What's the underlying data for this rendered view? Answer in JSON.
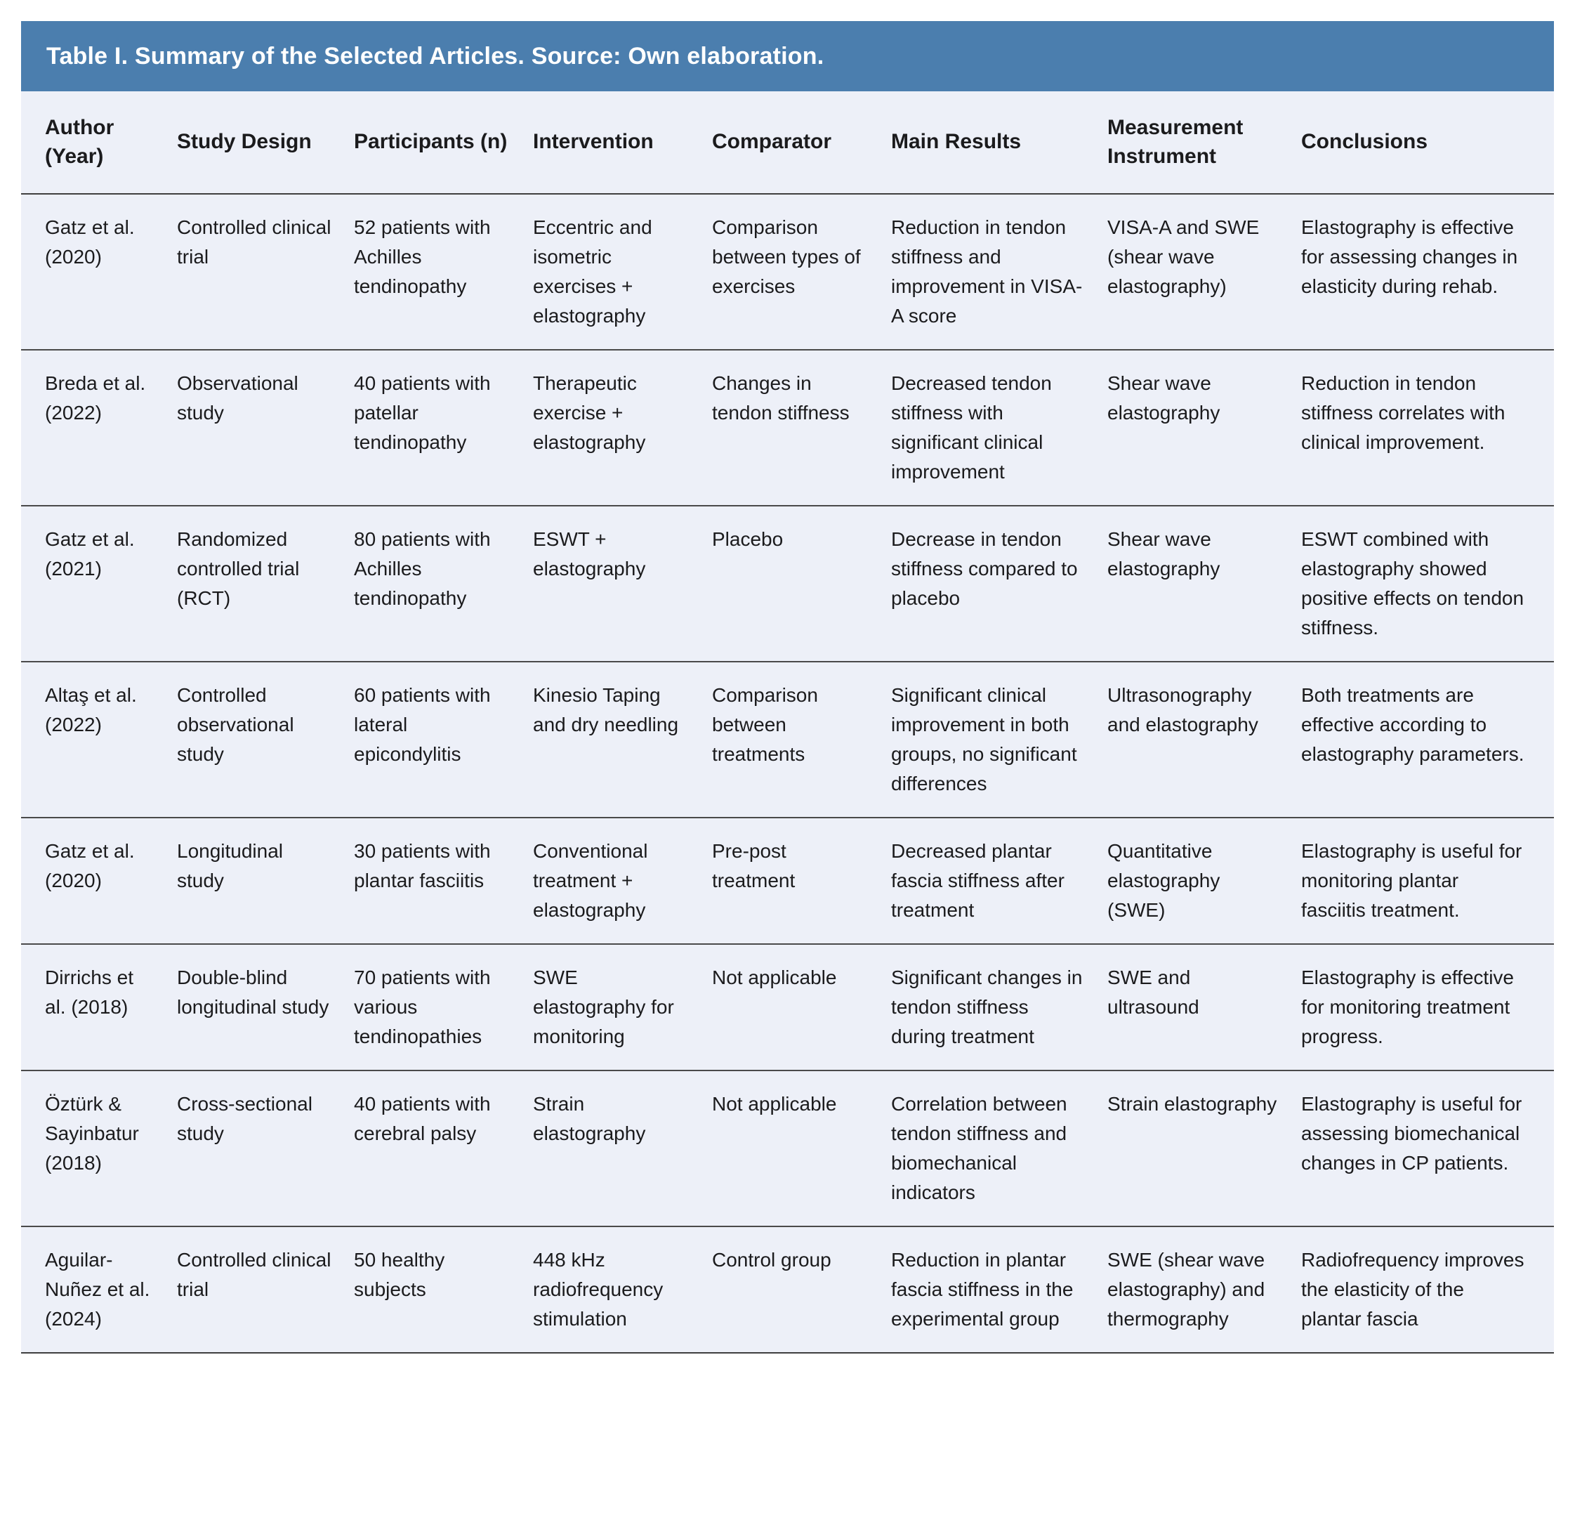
{
  "title": "Table I. Summary of the Selected Articles. Source: Own elaboration.",
  "colors": {
    "header_bar": "#4b7eae",
    "table_bg": "#edf0f8",
    "text": "#1b1b1d",
    "divider": "#3f3f3f",
    "title_text": "#ffffff"
  },
  "table": {
    "columns": [
      "Author (Year)",
      "Study Design",
      "Participants (n)",
      "Intervention",
      "Comparator",
      "Main Results",
      "Measurement Instrument",
      "Conclusions"
    ],
    "rows": [
      [
        "Gatz et al. (2020)",
        "Controlled clinical trial",
        "52 patients with Achilles tendinopathy",
        "Eccentric and isometric exercises + elastography",
        "Comparison between types of exercises",
        "Reduction in tendon stiffness and improvement in VISA-A score",
        "VISA-A and SWE (shear wave elastography)",
        "Elastography is effective for assessing changes in elasticity during rehab."
      ],
      [
        "Breda et al. (2022)",
        "Observational study",
        "40 patients with patellar tendinopathy",
        "Therapeutic exercise + elastography",
        "Changes in tendon stiffness",
        "Decreased tendon stiffness with significant clinical improvement",
        "Shear wave elastography",
        "Reduction in tendon stiffness correlates with clinical improvement."
      ],
      [
        "Gatz et al. (2021)",
        "Randomized controlled trial (RCT)",
        "80 patients with Achilles tendinopathy",
        "ESWT + elastography",
        "Placebo",
        "Decrease in tendon stiffness compared to placebo",
        "Shear wave elastography",
        "ESWT combined with elastography showed positive effects on tendon stiffness."
      ],
      [
        "Altaş et al. (2022)",
        "Controlled observational study",
        "60 patients with lateral epicondylitis",
        "Kinesio Taping and dry needling",
        "Comparison between treatments",
        "Significant clinical improvement in both groups, no significant differences",
        "Ultrasonography and elastography",
        "Both treatments are effective according to elastography parameters."
      ],
      [
        "Gatz et al. (2020)",
        "Longitudinal study",
        "30 patients with plantar fasciitis",
        "Conventional treatment + elastography",
        "Pre-post treatment",
        "Decreased plantar fascia stiffness after treatment",
        "Quantitative elastography (SWE)",
        "Elastography is useful for monitoring plantar fasciitis treatment."
      ],
      [
        "Dirrichs et al. (2018)",
        "Double-blind longitudinal study",
        "70 patients with various tendinopathies",
        "SWE elastography for monitoring",
        "Not applicable",
        "Significant changes in tendon stiffness during treatment",
        "SWE and ultrasound",
        "Elastography is effective for monitoring treatment progress."
      ],
      [
        "Öztürk & Sayinbatur (2018)",
        "Cross-sectional study",
        "40 patients with cerebral palsy",
        "Strain elastography",
        "Not applicable",
        "Correlation between tendon stiffness and biomechanical indicators",
        "Strain elastography",
        "Elastography is useful for assessing biomechanical changes in CP patients."
      ],
      [
        "Aguilar-Nuñez et al. (2024)",
        "Controlled clinical trial",
        "50 healthy subjects",
        "448 kHz radiofrequency stimulation",
        "Control group",
        "Reduction in plantar fascia stiffness in the experimental group",
        "SWE (shear wave elastography) and thermography",
        "Radiofrequency improves the elasticity of the plantar fascia"
      ]
    ]
  }
}
